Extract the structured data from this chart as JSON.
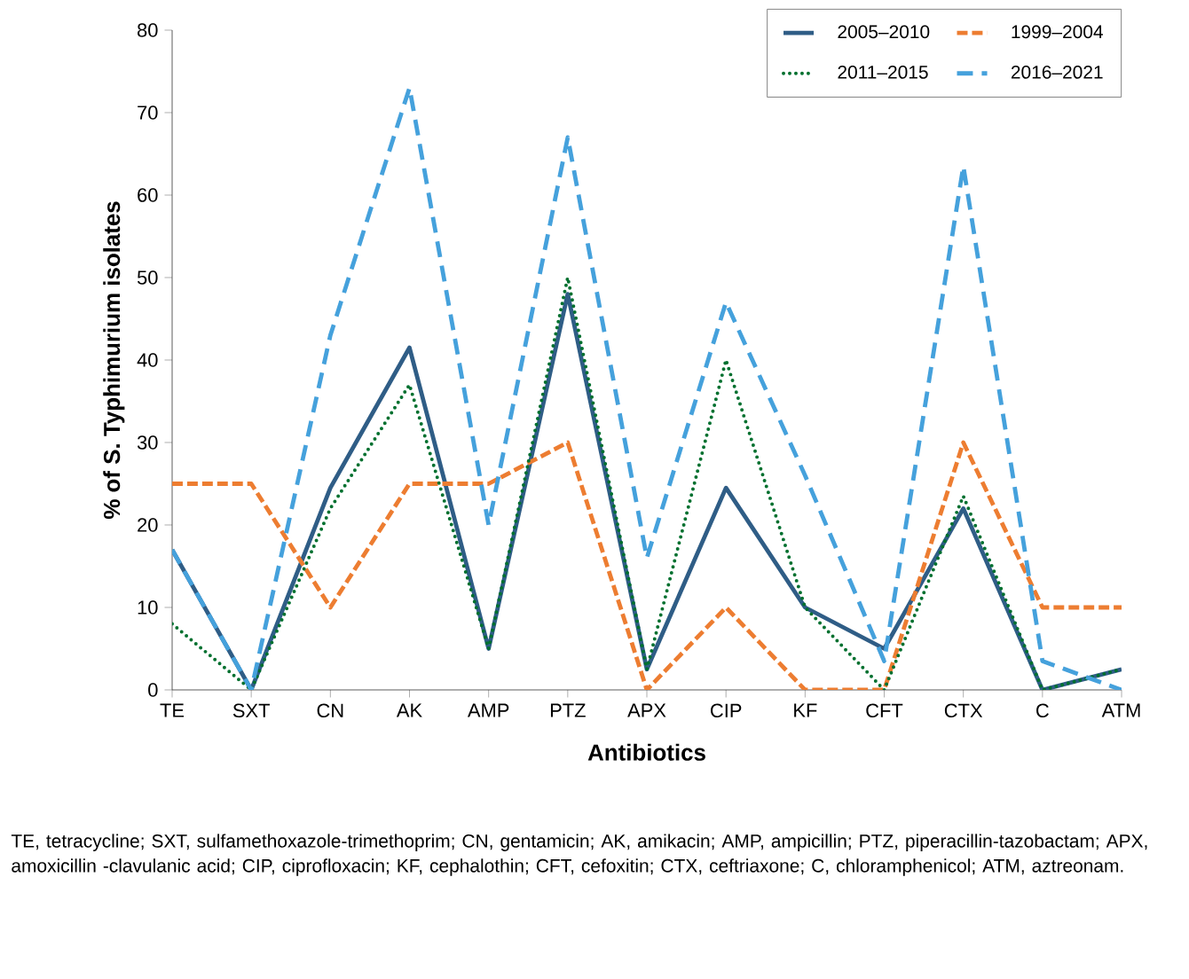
{
  "chart_data": {
    "type": "line",
    "xlabel": "Antibiotics",
    "ylabel": "% of S. Typhimurium isolates",
    "categories": [
      "TE",
      "SXT",
      "CN",
      "AK",
      "AMP",
      "PTZ",
      "APX",
      "CIP",
      "KF",
      "CFT",
      "CTX",
      "C",
      "ATM"
    ],
    "series": [
      {
        "name": "2005–2010",
        "color": "#2f5d86",
        "line_style": "solid",
        "values": [
          17,
          0,
          24.5,
          41.5,
          5,
          48,
          2.5,
          24.5,
          10,
          5,
          22,
          0,
          2.5
        ]
      },
      {
        "name": "1999–2004",
        "color": "#ed7d31",
        "line_style": "dashed",
        "values": [
          25,
          25,
          10,
          25,
          25,
          30,
          0,
          10,
          0,
          0,
          30,
          10,
          10
        ]
      },
      {
        "name": "2011–2015",
        "color": "#00702f",
        "line_style": "dotted",
        "values": [
          8,
          0,
          22,
          37,
          5,
          50,
          2.5,
          40,
          10,
          0,
          23.5,
          0,
          2.5
        ]
      },
      {
        "name": "2016–2021",
        "color": "#45a1dc",
        "line_style": "dashed",
        "values": [
          17,
          0,
          43,
          73,
          20,
          67,
          16,
          47,
          26,
          3.5,
          63.5,
          3.5,
          0
        ]
      }
    ],
    "ylim": [
      0,
      80
    ],
    "yticks": [
      0,
      10,
      20,
      30,
      40,
      50,
      60,
      70,
      80
    ],
    "grid": false,
    "legend": "top right",
    "marker": "none",
    "annotations": [
      "TE, tetracycline; SXT, sulfamethoxazole-trimethoprim; CN, gentamicin; AK, amikacin; AMP, ampicillin; PTZ, piperacillin-tazobactam; APX, amoxicillin -clavulanic acid; CIP, ciprofloxacin; KF, cephalothin; CFT, cefoxitin; CTX, ceftriaxone; C, chloramphenicol; ATM, aztreonam."
    ]
  }
}
